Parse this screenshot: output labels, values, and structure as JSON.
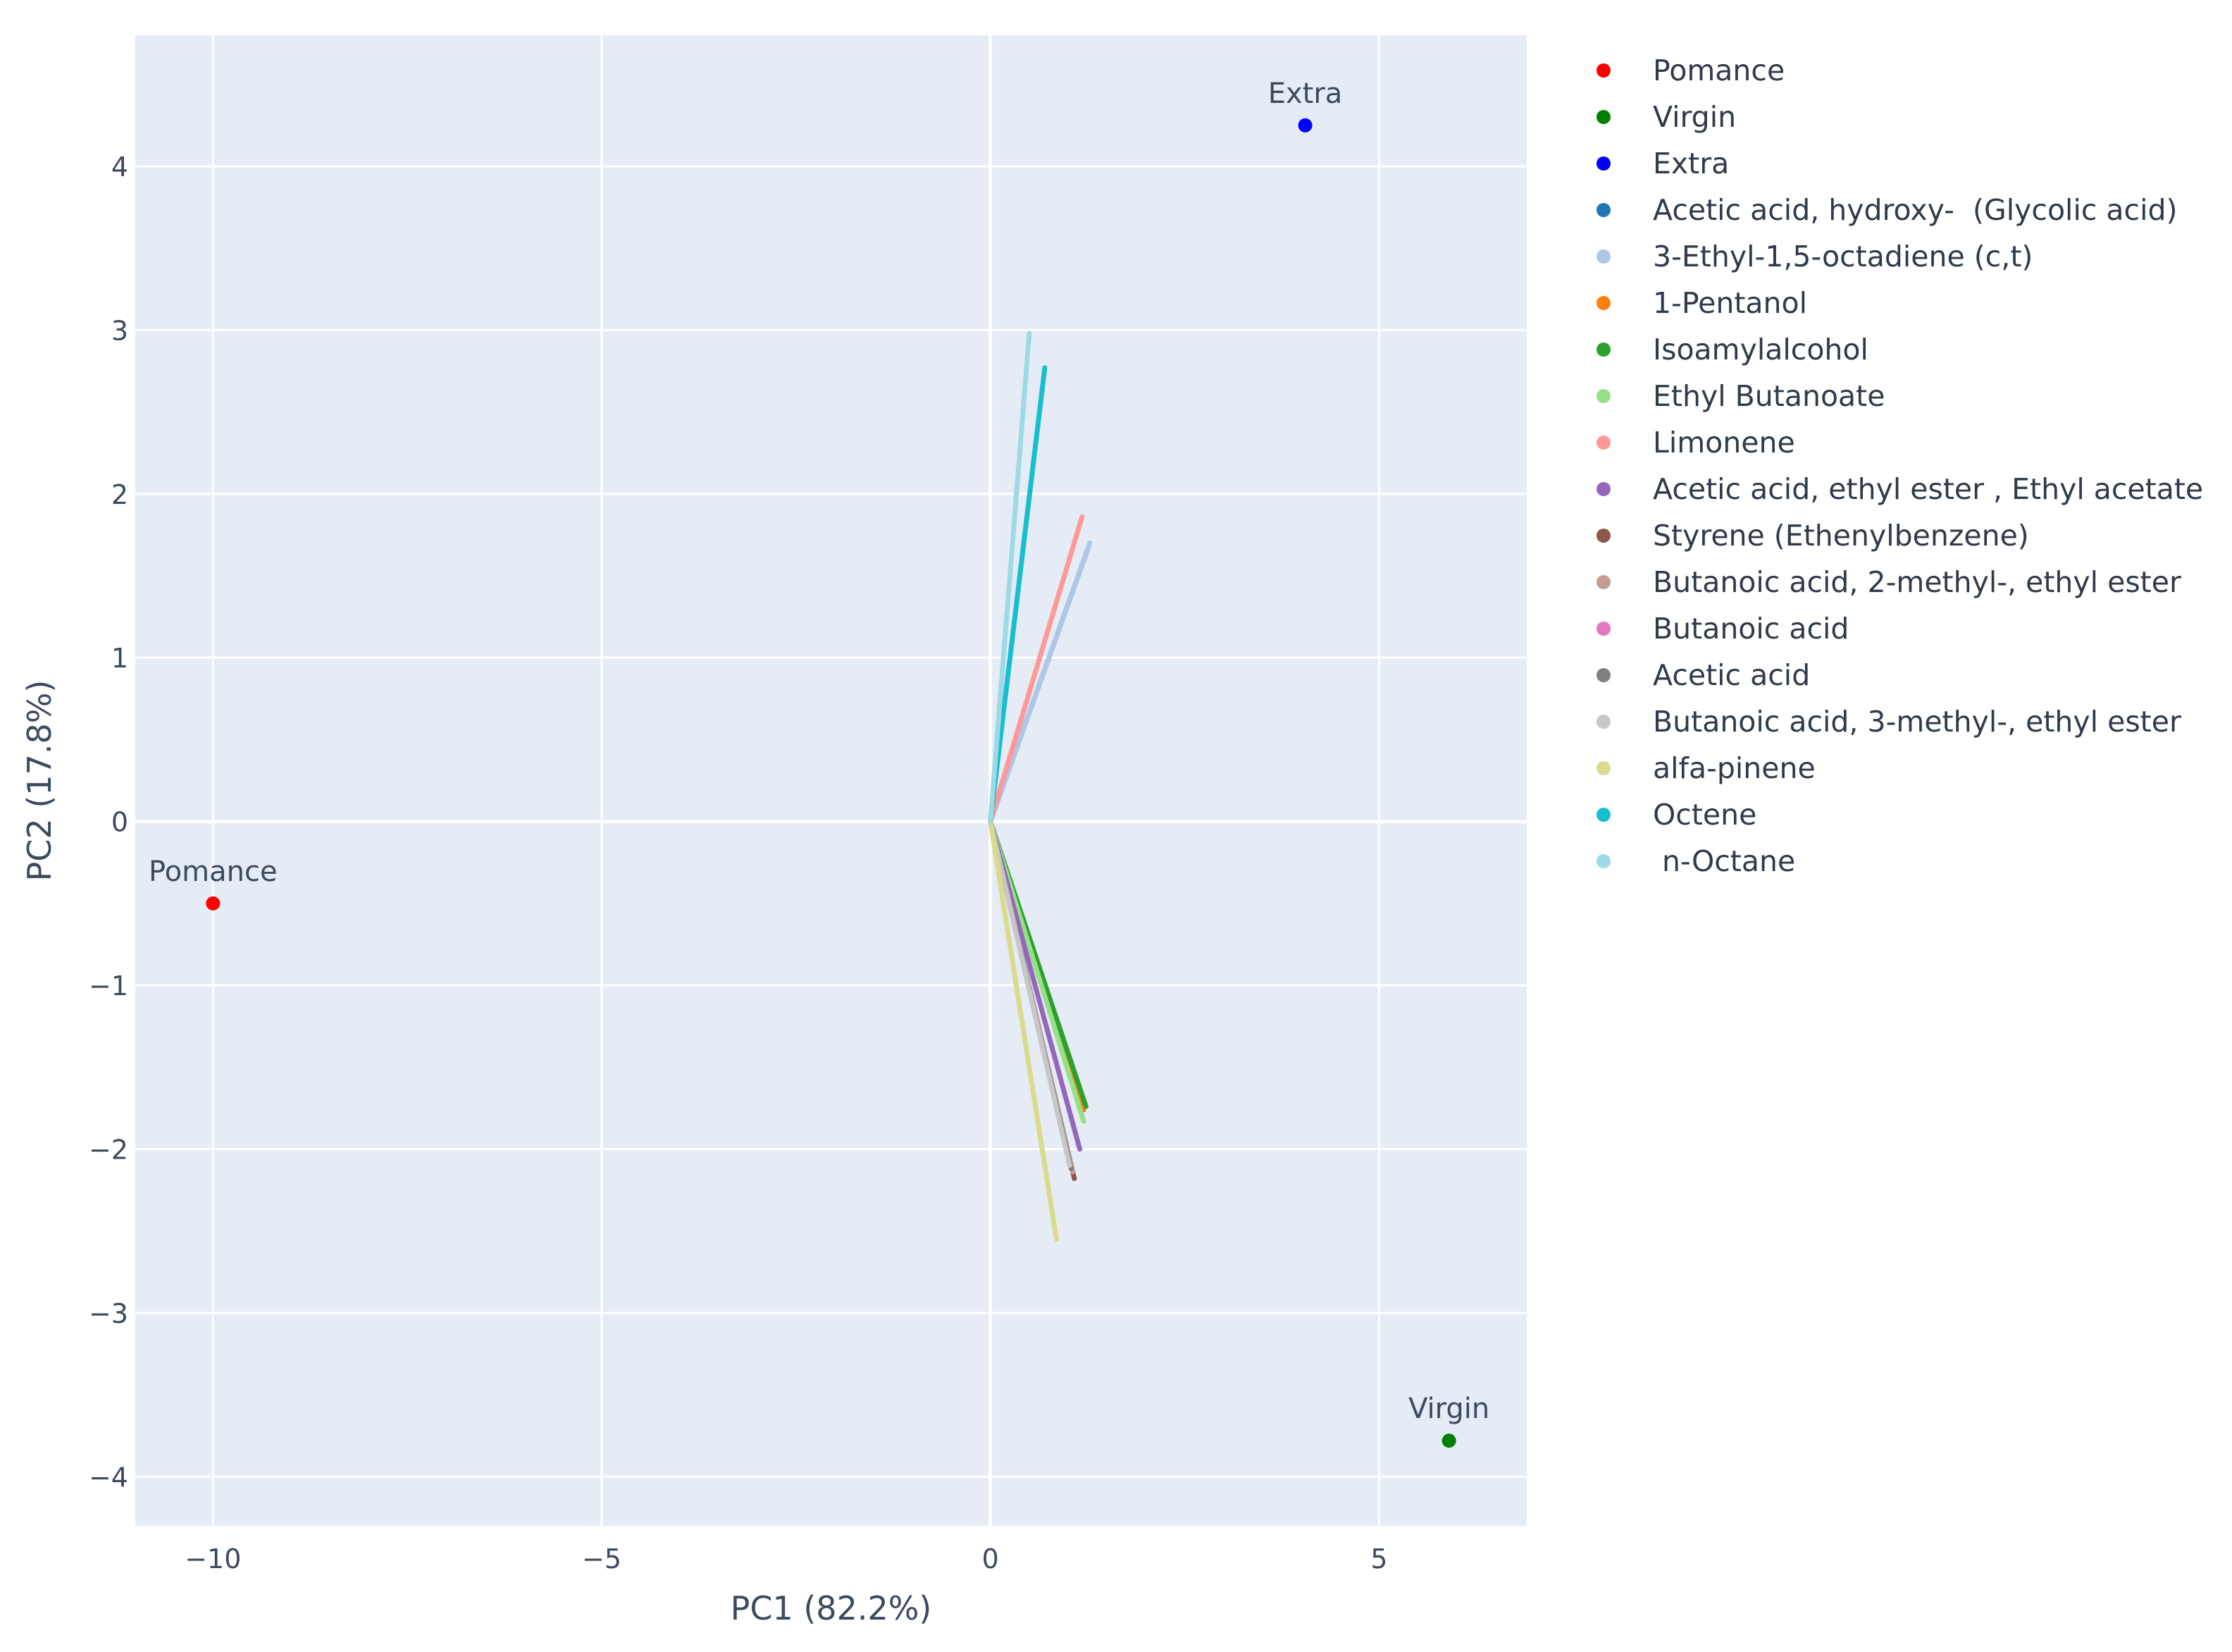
{
  "chart_data": {
    "type": "scatter",
    "xlabel": "PC1 (82.2%)",
    "ylabel": "PC2 (17.8%)",
    "xlim": [
      -11,
      6.9
    ],
    "ylim": [
      -4.3,
      4.8
    ],
    "grid": true,
    "legend_position": "right",
    "x_ticks": [
      -10,
      -5,
      0,
      5
    ],
    "x_tick_labels": [
      "−10",
      "−5",
      "0",
      "5"
    ],
    "y_ticks": [
      -4,
      -3,
      -2,
      -1,
      0,
      1,
      2,
      3,
      4
    ],
    "y_tick_labels": [
      "−4",
      "−3",
      "−2",
      "−1",
      "0",
      "1",
      "2",
      "3",
      "4"
    ],
    "points": [
      {
        "name": "Pomance",
        "label": "Pomance",
        "x": -10.0,
        "y": -0.5,
        "color": "#ff0000"
      },
      {
        "name": "Virgin",
        "label": "Virgin",
        "x": 5.9,
        "y": -3.78,
        "color": "#008000"
      },
      {
        "name": "Extra",
        "label": "Extra",
        "x": 4.05,
        "y": 4.25,
        "color": "#0000ff"
      }
    ],
    "loadings": [
      {
        "name": "Acetic acid, hydroxy-  (Glycolic acid)",
        "x": 1.25,
        "y": 1.66,
        "color": "#1f77b4"
      },
      {
        "name": "3-Ethyl-1,5-octadiene (c,t)",
        "x": 1.28,
        "y": 1.7,
        "color": "#aec7e8"
      },
      {
        "name": "1-Pentanol",
        "x": 1.2,
        "y": -1.76,
        "color": "#ff7f0e"
      },
      {
        "name": "Isoamylalcohol",
        "x": 1.23,
        "y": -1.74,
        "color": "#2ca02c"
      },
      {
        "name": "Ethyl Butanoate",
        "x": 1.2,
        "y": -1.83,
        "color": "#98df8a"
      },
      {
        "name": "Limonene",
        "x": 1.18,
        "y": 1.86,
        "color": "#ff9896"
      },
      {
        "name": "Acetic acid, ethyl ester , Ethyl acetate",
        "x": 1.15,
        "y": -2.0,
        "color": "#9467bd"
      },
      {
        "name": "Styrene (Ethenylbenzene)",
        "x": 1.08,
        "y": -2.18,
        "color": "#8c564b"
      },
      {
        "name": "Butanoic acid, 2-methyl-, ethyl ester",
        "x": 1.06,
        "y": -2.14,
        "color": "#c49c94"
      },
      {
        "name": "Butanoic acid",
        "x": 1.0,
        "y": -2.05,
        "color": "#e377c2"
      },
      {
        "name": "Acetic acid",
        "x": 1.04,
        "y": -2.12,
        "color": "#7f7f7f"
      },
      {
        "name": "Butanoic acid, 3-methyl-, ethyl ester",
        "x": 1.02,
        "y": -2.1,
        "color": "#c7c7c7"
      },
      {
        "name": "alfa-pinene",
        "x": 0.85,
        "y": -2.55,
        "color": "#dbdb8d"
      },
      {
        "name": "Octene",
        "x": 0.7,
        "y": 2.77,
        "color": "#17becf"
      },
      {
        "name": " n-Octane",
        "x": 0.5,
        "y": 2.98,
        "color": "#9edae5"
      }
    ]
  }
}
